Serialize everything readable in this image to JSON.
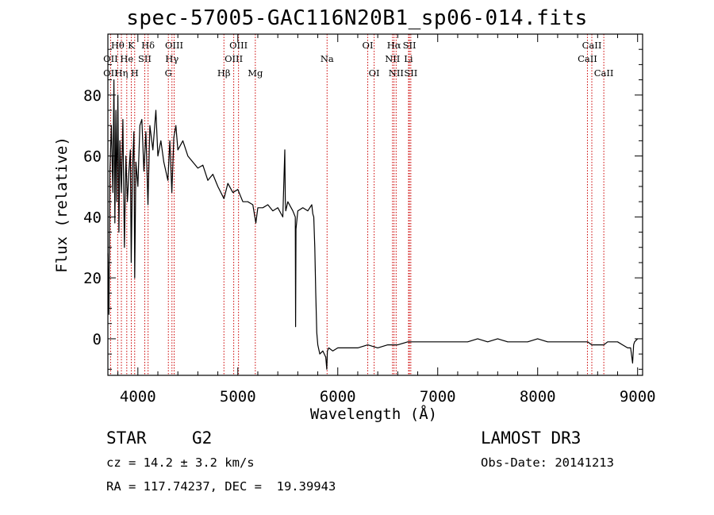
{
  "chart_data": {
    "type": "line",
    "title": "spec-57005-GAC116N20B1_sp06-014.fits",
    "xlabel": "Wavelength (Å)",
    "ylabel": "Flux (relative)",
    "xlim": [
      3700,
      9050
    ],
    "ylim": [
      -12,
      100
    ],
    "xticks": [
      4000,
      5000,
      6000,
      7000,
      8000,
      9000
    ],
    "xtick_labels": [
      "4000",
      "5000",
      "6000",
      "7000",
      "8000",
      "9000"
    ],
    "yticks": [
      0,
      20,
      40,
      60,
      80
    ],
    "ytick_labels": [
      "0",
      "20",
      "40",
      "60",
      "80"
    ],
    "grid": false,
    "series": [
      {
        "name": "spectrum",
        "x": [
          3700,
          3710,
          3720,
          3735,
          3750,
          3760,
          3770,
          3780,
          3790,
          3800,
          3810,
          3820,
          3835,
          3850,
          3865,
          3880,
          3895,
          3910,
          3925,
          3933,
          3945,
          3960,
          3968,
          3980,
          4000,
          4020,
          4040,
          4060,
          4080,
          4101,
          4120,
          4150,
          4180,
          4200,
          4230,
          4260,
          4300,
          4320,
          4340,
          4360,
          4380,
          4400,
          4450,
          4500,
          4550,
          4600,
          4650,
          4700,
          4750,
          4800,
          4861,
          4900,
          4950,
          5000,
          5050,
          5100,
          5150,
          5180,
          5200,
          5250,
          5300,
          5350,
          5400,
          5450,
          5470,
          5475,
          5480,
          5500,
          5550,
          5575,
          5578,
          5582,
          5600,
          5650,
          5700,
          5740,
          5750,
          5760,
          5770,
          5780,
          5790,
          5800,
          5820,
          5850,
          5880,
          5890,
          5896,
          5910,
          5950,
          6000,
          6100,
          6200,
          6300,
          6400,
          6500,
          6563,
          6600,
          6700,
          6800,
          6900,
          7000,
          7100,
          7200,
          7300,
          7400,
          7500,
          7600,
          7700,
          7800,
          7900,
          8000,
          8100,
          8200,
          8300,
          8400,
          8500,
          8542,
          8600,
          8662,
          8700,
          8800,
          8850,
          8900,
          8930,
          8950,
          8960,
          8970,
          9000
        ],
        "y": [
          28,
          8,
          55,
          70,
          48,
          85,
          38,
          75,
          45,
          80,
          35,
          65,
          48,
          72,
          30,
          60,
          45,
          55,
          62,
          25,
          55,
          68,
          20,
          58,
          50,
          70,
          72,
          55,
          68,
          44,
          70,
          62,
          75,
          60,
          65,
          58,
          52,
          65,
          48,
          66,
          70,
          62,
          65,
          60,
          58,
          56,
          57,
          52,
          54,
          50,
          46,
          51,
          48,
          49,
          45,
          45,
          44,
          38,
          43,
          43,
          44,
          42,
          43,
          40,
          62,
          46,
          42,
          45,
          42,
          40,
          4,
          36,
          42,
          43,
          42,
          44,
          41,
          40,
          30,
          15,
          2,
          -2,
          -5,
          -4,
          -6,
          -10,
          -4,
          -3,
          -4,
          -3,
          -3,
          -3,
          -2,
          -3,
          -2,
          -2,
          -2,
          -1,
          -1,
          -1,
          -1,
          -1,
          -1,
          -1,
          0,
          -1,
          0,
          -1,
          -1,
          -1,
          0,
          -1,
          -1,
          -1,
          -1,
          -1,
          -2,
          -2,
          -2,
          -1,
          -1,
          -2,
          -3,
          -3,
          -8,
          -2,
          -1,
          0
        ]
      }
    ],
    "line_labels": [
      {
        "label": "Hθ",
        "wavelength": 3798,
        "row": 1
      },
      {
        "label": "OII",
        "wavelength": 3727,
        "row": 2
      },
      {
        "label": "OII",
        "wavelength": 3727,
        "row": 3
      },
      {
        "label": "He",
        "wavelength": 3889,
        "row": 2
      },
      {
        "label": "Hη",
        "wavelength": 3835,
        "row": 3
      },
      {
        "label": "K",
        "wavelength": 3934,
        "row": 1
      },
      {
        "label": "H",
        "wavelength": 3968,
        "row": 3
      },
      {
        "label": "SII",
        "wavelength": 4069,
        "row": 2
      },
      {
        "label": "Hδ",
        "wavelength": 4102,
        "row": 1
      },
      {
        "label": "OIII",
        "wavelength": 4363,
        "row": 1
      },
      {
        "label": "Hγ",
        "wavelength": 4341,
        "row": 2
      },
      {
        "label": "G",
        "wavelength": 4305,
        "row": 3
      },
      {
        "label": "Hβ",
        "wavelength": 4861,
        "row": 3
      },
      {
        "label": "OIII",
        "wavelength": 5007,
        "row": 1
      },
      {
        "label": "OIII",
        "wavelength": 4959,
        "row": 2
      },
      {
        "label": "Mg",
        "wavelength": 5175,
        "row": 3
      },
      {
        "label": "Na",
        "wavelength": 5893,
        "row": 2
      },
      {
        "label": "OI",
        "wavelength": 6300,
        "row": 1
      },
      {
        "label": "OI",
        "wavelength": 6364,
        "row": 3
      },
      {
        "label": "Hα",
        "wavelength": 6563,
        "row": 1
      },
      {
        "label": "NII",
        "wavelength": 6548,
        "row": 2
      },
      {
        "label": "NII",
        "wavelength": 6584,
        "row": 3
      },
      {
        "label": "SII",
        "wavelength": 6717,
        "row": 1
      },
      {
        "label": "Li",
        "wavelength": 6708,
        "row": 2
      },
      {
        "label": "SII",
        "wavelength": 6731,
        "row": 3
      },
      {
        "label": "CaII",
        "wavelength": 8542,
        "row": 1
      },
      {
        "label": "CaII",
        "wavelength": 8498,
        "row": 2
      },
      {
        "label": "CaII",
        "wavelength": 8662,
        "row": 3
      }
    ],
    "line_positions": [
      3727,
      3798,
      3835,
      3889,
      3934,
      3968,
      4069,
      4102,
      4305,
      4341,
      4363,
      4861,
      4959,
      5007,
      5175,
      5893,
      6300,
      6364,
      6548,
      6563,
      6584,
      6708,
      6717,
      6731,
      8498,
      8542,
      8662
    ]
  },
  "info": {
    "class": "STAR",
    "subclass": "G2",
    "survey": "LAMOST DR3",
    "redshift": "cz = 14.2 ± 3.2 km/s",
    "obs_date": "Obs-Date: 20141213",
    "coords": "RA = 117.74237, DEC =  19.39943"
  },
  "colors": {
    "line_marker": "#cc0000",
    "spectrum": "#000000"
  }
}
